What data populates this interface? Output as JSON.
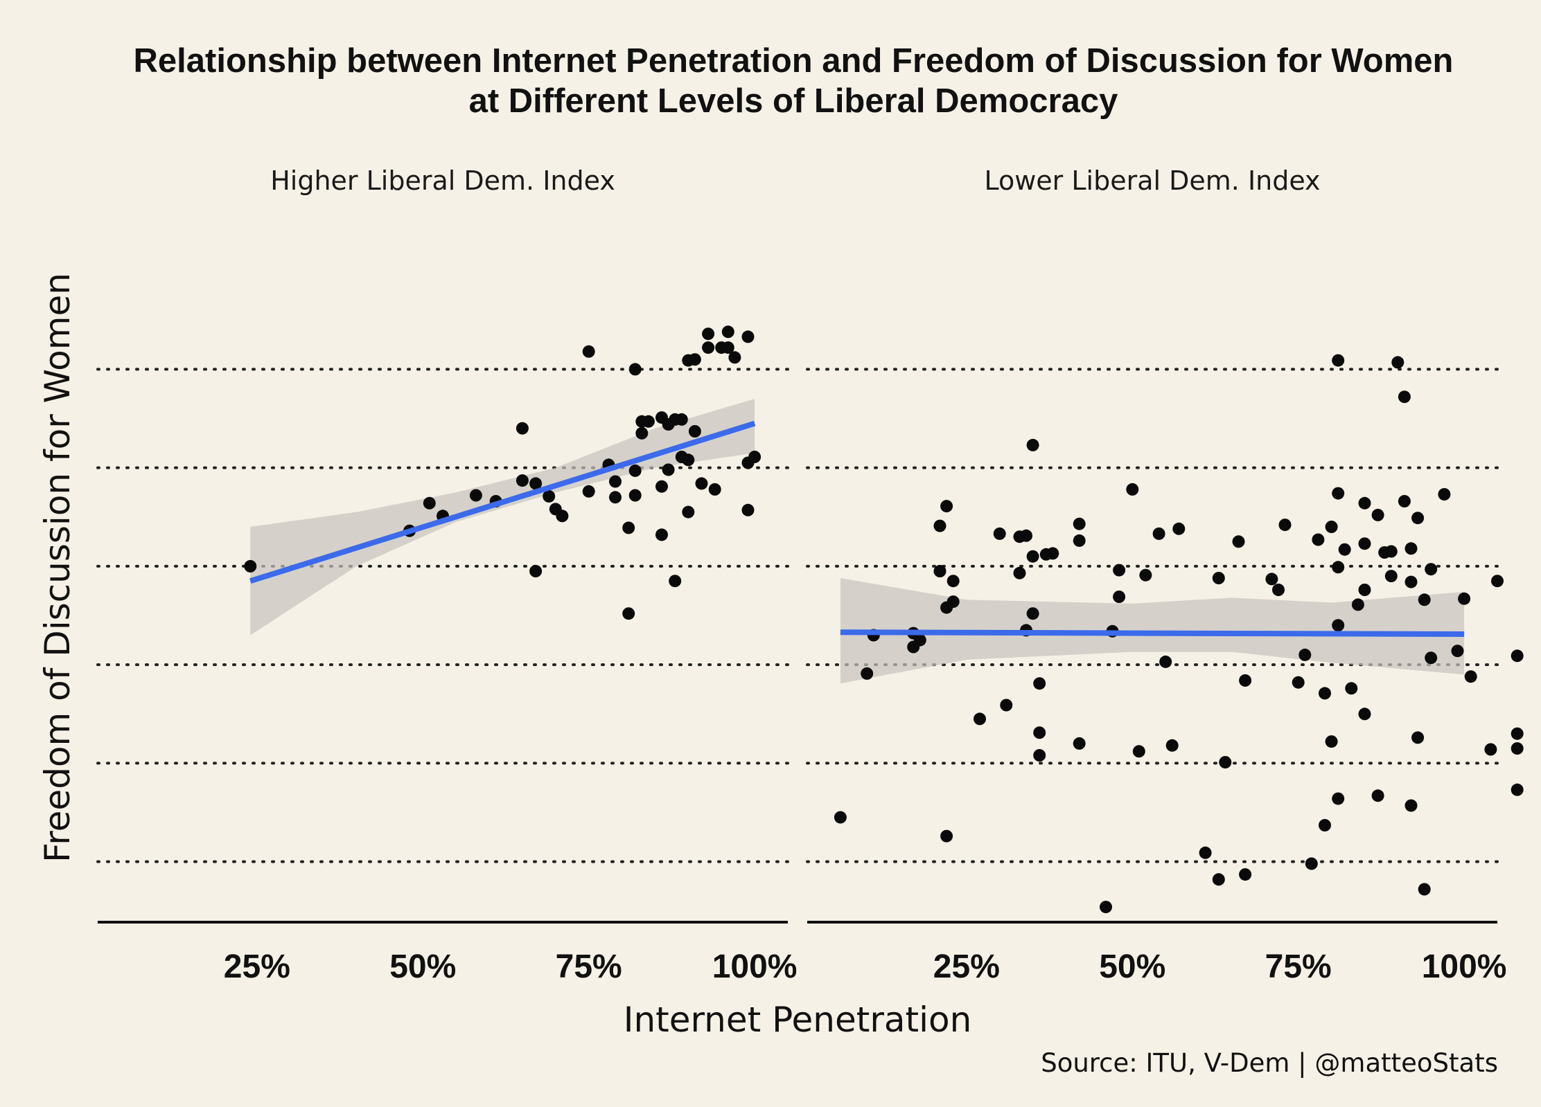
{
  "chart_data": {
    "type": "scatter",
    "title_line1": "Relationship between Internet Penetration and Freedom of Discussion for Women",
    "title_line2": "at Different Levels of Liberal Democracy",
    "xlabel": "Internet Penetration",
    "ylabel": "Freedom of Discussion for Women",
    "caption": "Source: ITU, V-Dem | @matteoStats",
    "x_tick_values": [
      25,
      50,
      75,
      100
    ],
    "x_tick_labels": [
      "25%",
      "50%",
      "75%",
      "100%"
    ],
    "xlim": [
      1,
      105
    ],
    "ylim": [
      -0.6,
      6.5
    ],
    "y_grid_values": [
      0,
      1,
      2,
      3,
      4,
      5
    ],
    "y_tick_labels_shown": false,
    "grid": "horizontal dotted",
    "smooth": "linear fit with confidence band",
    "panels": [
      {
        "strip_label": "Higher Liberal Dem. Index",
        "fit": {
          "x0": 24,
          "y0": 2.85,
          "x1": 100,
          "y1": 4.45
        },
        "band": [
          {
            "x": 24,
            "lo": 2.3,
            "hi": 3.4
          },
          {
            "x": 40,
            "lo": 3.0,
            "hi": 3.55
          },
          {
            "x": 55,
            "lo": 3.45,
            "hi": 3.75
          },
          {
            "x": 70,
            "lo": 3.75,
            "hi": 4.0
          },
          {
            "x": 85,
            "lo": 4.0,
            "hi": 4.4
          },
          {
            "x": 100,
            "lo": 4.15,
            "hi": 4.7
          }
        ],
        "points": [
          [
            24,
            3.0
          ],
          [
            48,
            3.36
          ],
          [
            51,
            3.64
          ],
          [
            53,
            3.51
          ],
          [
            58,
            3.72
          ],
          [
            61,
            3.66
          ],
          [
            65,
            4.4
          ],
          [
            65,
            3.87
          ],
          [
            67,
            3.84
          ],
          [
            67,
            2.95
          ],
          [
            69,
            3.71
          ],
          [
            70,
            3.58
          ],
          [
            71,
            3.51
          ],
          [
            75,
            3.76
          ],
          [
            75,
            5.18
          ],
          [
            78,
            4.03
          ],
          [
            79,
            3.86
          ],
          [
            79,
            3.7
          ],
          [
            81,
            3.39
          ],
          [
            81,
            2.52
          ],
          [
            82,
            3.72
          ],
          [
            82,
            3.97
          ],
          [
            82,
            5.0
          ],
          [
            83,
            4.35
          ],
          [
            83,
            4.47
          ],
          [
            84,
            4.47
          ],
          [
            86,
            4.51
          ],
          [
            86,
            3.81
          ],
          [
            86,
            3.32
          ],
          [
            87,
            4.44
          ],
          [
            87,
            3.98
          ],
          [
            88,
            4.49
          ],
          [
            88,
            2.85
          ],
          [
            89,
            4.49
          ],
          [
            89,
            4.11
          ],
          [
            90,
            3.55
          ],
          [
            90,
            4.08
          ],
          [
            90,
            5.09
          ],
          [
            91,
            5.1
          ],
          [
            91,
            4.37
          ],
          [
            92,
            3.84
          ],
          [
            93,
            5.22
          ],
          [
            93,
            5.36
          ],
          [
            94,
            3.78
          ],
          [
            95,
            5.22
          ],
          [
            96,
            5.38
          ],
          [
            96,
            5.22
          ],
          [
            97,
            5.12
          ],
          [
            99,
            5.33
          ],
          [
            99,
            4.05
          ],
          [
            99,
            3.57
          ],
          [
            100,
            4.11
          ]
        ]
      },
      {
        "strip_label": "Lower Liberal Dem. Index",
        "fit": {
          "x0": 6,
          "y0": 2.33,
          "x1": 100,
          "y1": 2.31
        },
        "band": [
          {
            "x": 6,
            "lo": 1.81,
            "hi": 2.88
          },
          {
            "x": 25,
            "lo": 2.05,
            "hi": 2.66
          },
          {
            "x": 50,
            "lo": 2.13,
            "hi": 2.62
          },
          {
            "x": 65,
            "lo": 2.13,
            "hi": 2.68
          },
          {
            "x": 80,
            "lo": 2.02,
            "hi": 2.63
          },
          {
            "x": 100,
            "lo": 1.9,
            "hi": 2.74
          }
        ],
        "points": [
          [
            6,
            0.45
          ],
          [
            10,
            1.91
          ],
          [
            11,
            2.3
          ],
          [
            17,
            2.32
          ],
          [
            17,
            2.18
          ],
          [
            18,
            2.25
          ],
          [
            21,
            2.95
          ],
          [
            21,
            3.41
          ],
          [
            22,
            2.58
          ],
          [
            22,
            3.61
          ],
          [
            22,
            0.26
          ],
          [
            23,
            2.85
          ],
          [
            23,
            2.64
          ],
          [
            27,
            1.45
          ],
          [
            30,
            3.33
          ],
          [
            31,
            1.59
          ],
          [
            33,
            3.3
          ],
          [
            33,
            2.93
          ],
          [
            34,
            2.35
          ],
          [
            34,
            3.31
          ],
          [
            35,
            4.23
          ],
          [
            35,
            2.52
          ],
          [
            35,
            3.1
          ],
          [
            36,
            1.81
          ],
          [
            36,
            1.31
          ],
          [
            36,
            1.08
          ],
          [
            37,
            3.12
          ],
          [
            38,
            3.13
          ],
          [
            42,
            3.43
          ],
          [
            42,
            3.26
          ],
          [
            42,
            1.2
          ],
          [
            46,
            -0.46
          ],
          [
            47,
            2.34
          ],
          [
            48,
            2.96
          ],
          [
            48,
            2.69
          ],
          [
            50,
            3.78
          ],
          [
            51,
            1.12
          ],
          [
            52,
            2.91
          ],
          [
            54,
            3.33
          ],
          [
            55,
            2.03
          ],
          [
            56,
            1.18
          ],
          [
            57,
            3.38
          ],
          [
            61,
            0.09
          ],
          [
            63,
            2.88
          ],
          [
            63,
            -0.18
          ],
          [
            64,
            1.01
          ],
          [
            66,
            3.25
          ],
          [
            67,
            -0.13
          ],
          [
            67,
            1.84
          ],
          [
            71,
            2.87
          ],
          [
            72,
            2.76
          ],
          [
            73,
            3.42
          ],
          [
            75,
            1.82
          ],
          [
            76,
            2.1
          ],
          [
            77,
            -0.02
          ],
          [
            78,
            3.27
          ],
          [
            79,
            0.37
          ],
          [
            79,
            1.71
          ],
          [
            80,
            3.4
          ],
          [
            80,
            1.22
          ],
          [
            81,
            0.64
          ],
          [
            81,
            2.4
          ],
          [
            81,
            2.99
          ],
          [
            81,
            3.74
          ],
          [
            81,
            5.09
          ],
          [
            82,
            3.17
          ],
          [
            83,
            1.76
          ],
          [
            84,
            2.61
          ],
          [
            85,
            3.64
          ],
          [
            85,
            3.23
          ],
          [
            85,
            2.76
          ],
          [
            85,
            1.5
          ],
          [
            87,
            0.67
          ],
          [
            87,
            3.52
          ],
          [
            88,
            3.14
          ],
          [
            89,
            3.15
          ],
          [
            89,
            2.9
          ],
          [
            90,
            5.07
          ],
          [
            91,
            3.66
          ],
          [
            91,
            4.72
          ],
          [
            92,
            3.18
          ],
          [
            92,
            0.57
          ],
          [
            92,
            2.84
          ],
          [
            93,
            3.49
          ],
          [
            93,
            1.26
          ],
          [
            94,
            2.66
          ],
          [
            94,
            -0.28
          ],
          [
            95,
            2.07
          ],
          [
            95,
            2.97
          ],
          [
            97,
            3.73
          ],
          [
            99,
            2.14
          ],
          [
            100,
            2.67
          ],
          [
            101,
            1.88
          ],
          [
            104,
            1.14
          ],
          [
            105,
            2.85
          ],
          [
            108,
            1.3
          ],
          [
            108,
            1.15
          ],
          [
            108,
            0.73
          ],
          [
            108,
            2.09
          ]
        ]
      }
    ]
  }
}
